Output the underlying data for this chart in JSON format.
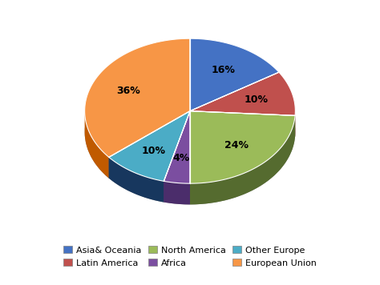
{
  "labels": [
    "Asia& Oceania",
    "Latin America",
    "North America",
    "Africa",
    "Other Europe",
    "European Union"
  ],
  "values": [
    16,
    10,
    24,
    4,
    10,
    36
  ],
  "colors": [
    "#4472C4",
    "#C0504D",
    "#9BBB59",
    "#7B4EA0",
    "#4BACC6",
    "#F79646"
  ],
  "dark_colors": [
    "#2F5496",
    "#943634",
    "#556B2F",
    "#4B2D6B",
    "#17375E",
    "#C05A00"
  ],
  "pct_labels": [
    "16%",
    "10%",
    "24%",
    "4%",
    "10%",
    "36%"
  ],
  "legend_labels": [
    "Asia& Oceania",
    "Latin America",
    "North America",
    "Africa",
    "Other Europe",
    "European Union"
  ],
  "background_color": "#FFFFFF",
  "label_fontsize": 9,
  "legend_fontsize": 8
}
